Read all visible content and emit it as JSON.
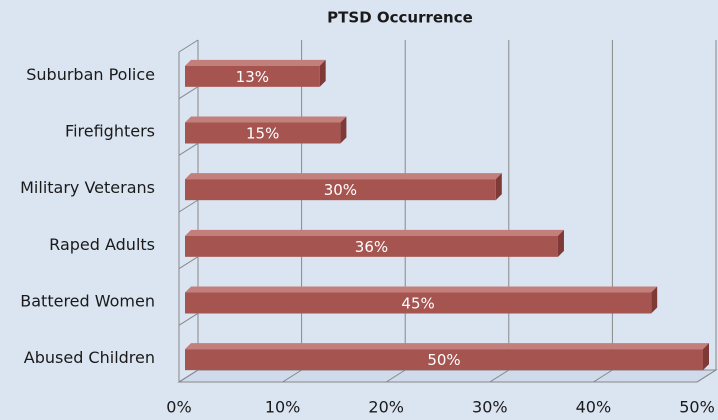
{
  "chart_data": {
    "type": "bar",
    "orientation": "horizontal",
    "title": "PTSD Occurrence",
    "categories": [
      "Suburban Police",
      "Firefighters",
      "Military Veterans",
      "Raped Adults",
      "Battered Women",
      "Abused Children"
    ],
    "values": [
      13,
      15,
      30,
      36,
      45,
      50
    ],
    "value_labels": [
      "13%",
      "15%",
      "30%",
      "36%",
      "45%",
      "50%"
    ],
    "color": "#a65450",
    "xlim": [
      0,
      50
    ],
    "xticks": [
      {
        "value": 0,
        "label": "0%"
      },
      {
        "value": 10,
        "label": "10%"
      },
      {
        "value": 20,
        "label": "20%"
      },
      {
        "value": 30,
        "label": "30%"
      },
      {
        "value": 40,
        "label": "40%"
      },
      {
        "value": 50,
        "label": "50%"
      }
    ],
    "grid": true
  }
}
